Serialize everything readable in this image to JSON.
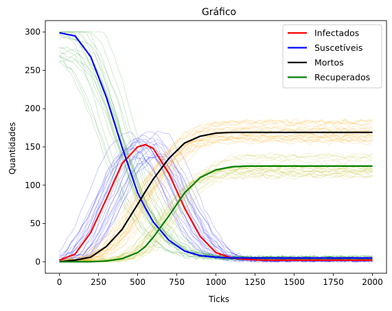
{
  "chart_data": {
    "type": "line",
    "title": "Gráfico",
    "xlabel": "Ticks",
    "ylabel": "Quantidades",
    "xlim": [
      -90,
      2090
    ],
    "ylim": [
      -15,
      315
    ],
    "xticks": [
      0,
      250,
      500,
      750,
      1000,
      1250,
      1500,
      1750,
      2000
    ],
    "yticks": [
      0,
      50,
      100,
      150,
      200,
      250,
      300
    ],
    "legend_position": "top-right",
    "grid": false,
    "x": [
      0,
      100,
      200,
      300,
      400,
      500,
      550,
      600,
      700,
      800,
      900,
      1000,
      1100,
      1200,
      1300,
      1500,
      1750,
      2000
    ],
    "series": [
      {
        "name": "Infectados",
        "color": "#ff0000",
        "values": [
          2,
          10,
          38,
          82,
          128,
          150,
          153,
          148,
          115,
          70,
          33,
          12,
          5,
          3,
          2,
          2,
          2,
          2
        ]
      },
      {
        "name": "Suscetíveis",
        "color": "#0000ff",
        "values": [
          299,
          295,
          268,
          215,
          150,
          90,
          70,
          52,
          28,
          14,
          8,
          6,
          5,
          5,
          5,
          5,
          5,
          5
        ]
      },
      {
        "name": "Mortos",
        "color": "#000000",
        "values": [
          0,
          2,
          6,
          20,
          42,
          75,
          92,
          108,
          135,
          155,
          164,
          168,
          169,
          169,
          169,
          169,
          169,
          169
        ]
      },
      {
        "name": "Recuperados",
        "color": "#008000",
        "values": [
          0,
          0,
          0,
          1,
          4,
          12,
          20,
          32,
          60,
          90,
          110,
          120,
          124,
          125,
          125,
          125,
          125,
          125
        ]
      }
    ],
    "ensemble_colors": {
      "Infectados": "#0000ff",
      "Suscetíveis": "#2ca02c",
      "Mortos": "#ffa500",
      "Recuperados": "#bcbd22"
    }
  }
}
